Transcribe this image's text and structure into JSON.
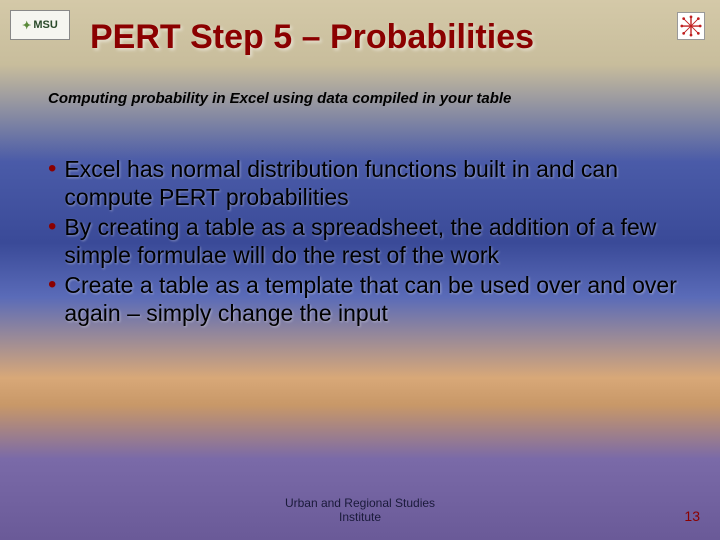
{
  "logos": {
    "left_text": "MSU",
    "left_leaf": "✦"
  },
  "title": "PERT Step 5 – Probabilities",
  "subtitle": "Computing probability in Excel using data compiled in your table",
  "bullets": [
    "Excel has normal distribution functions built in and can compute PERT probabilities",
    "By creating a table as a spreadsheet, the addition of a few simple formulae will do the rest of the work",
    "Create a table as a template that can be used over and over again – simply change the input"
  ],
  "footer": "Urban and Regional Studies Institute",
  "page_number": "13",
  "colors": {
    "title_color": "#8b0000",
    "bullet_color": "#8b0000",
    "text_color": "#000000",
    "page_num_color": "#8b0000"
  }
}
